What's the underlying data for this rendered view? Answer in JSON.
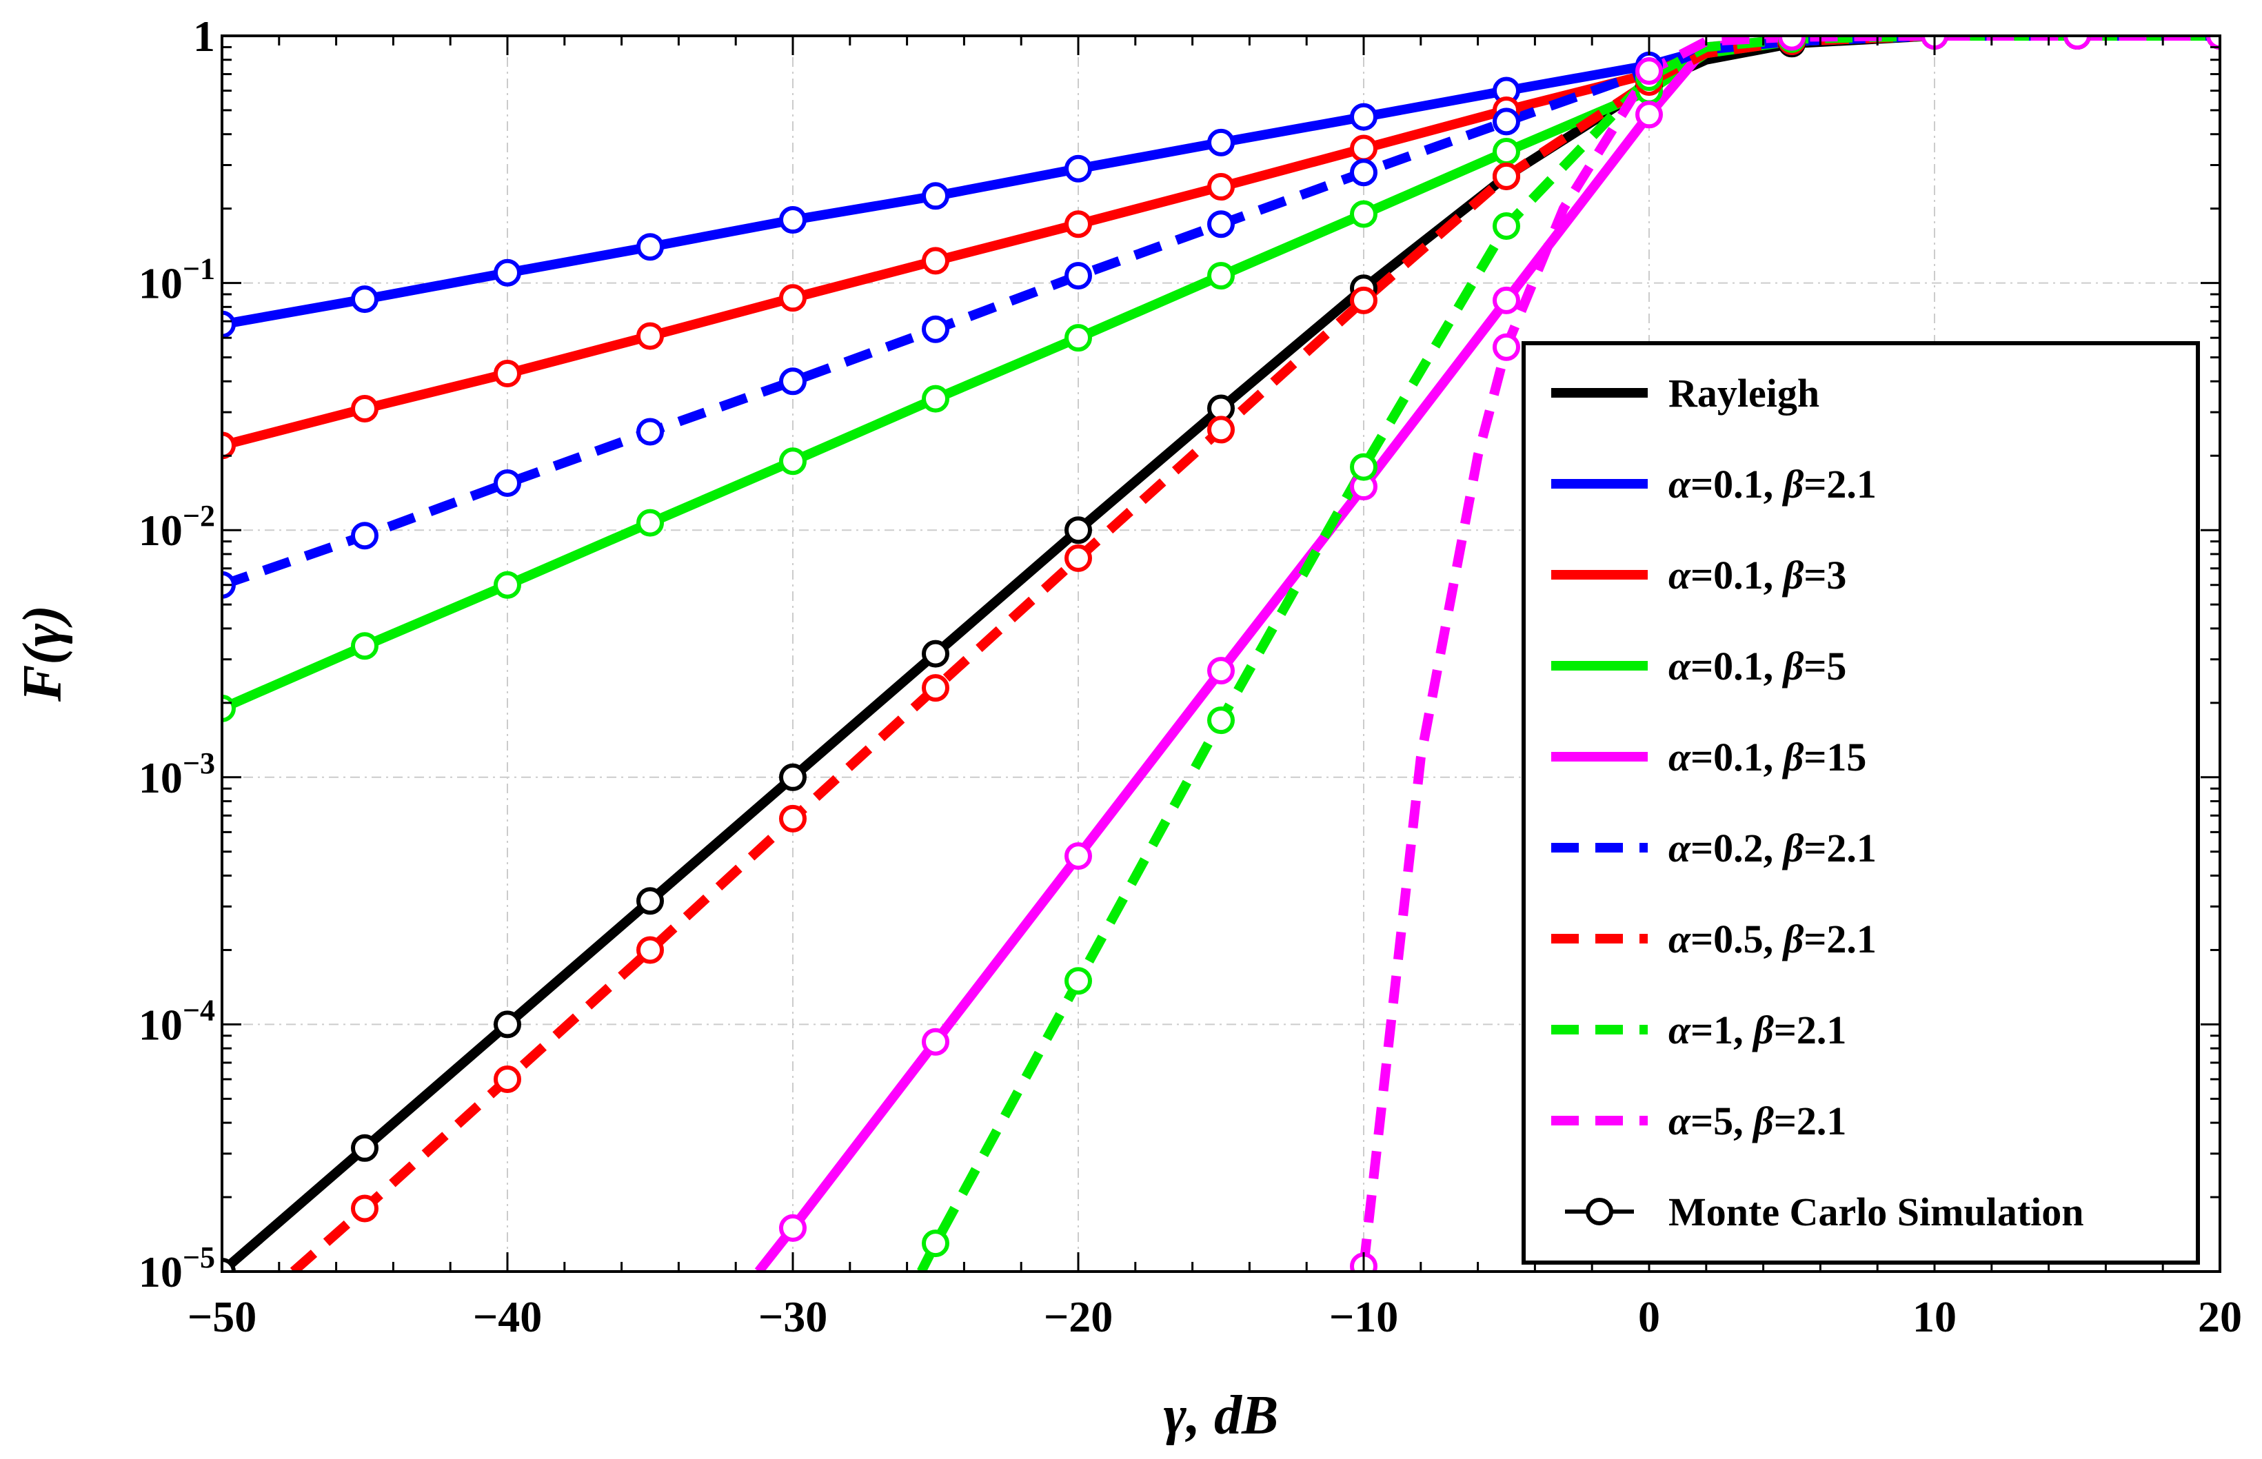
{
  "chart_data": {
    "type": "line",
    "title": "",
    "xlabel": "γ, dB",
    "ylabel": "F(γ)",
    "xlim": [
      -50,
      20
    ],
    "ylim_log10": [
      -5,
      0
    ],
    "y_scale": "log",
    "grid": true,
    "x_ticks": [
      {
        "value": -50,
        "label": "−50"
      },
      {
        "value": -40,
        "label": "−40"
      },
      {
        "value": -30,
        "label": "−30"
      },
      {
        "value": -20,
        "label": "−20"
      },
      {
        "value": -10,
        "label": "−10"
      },
      {
        "value": 0,
        "label": "0"
      },
      {
        "value": 10,
        "label": "10"
      },
      {
        "value": 20,
        "label": "20"
      }
    ],
    "y_ticks": [
      {
        "exp": 0,
        "base": "1",
        "sup": ""
      },
      {
        "exp": -1,
        "base": "10",
        "sup": "−1"
      },
      {
        "exp": -2,
        "base": "10",
        "sup": "−2"
      },
      {
        "exp": -3,
        "base": "10",
        "sup": "−3"
      },
      {
        "exp": -4,
        "base": "10",
        "sup": "−4"
      },
      {
        "exp": -5,
        "base": "10",
        "sup": "−5"
      }
    ],
    "legend_position": "right",
    "marker_legend_label": "Monte Carlo Simulation",
    "series": [
      {
        "id": "rayleigh",
        "name": "Rayleigh",
        "color": "#000000",
        "dashed": false,
        "x": [
          -50,
          -45,
          -40,
          -35,
          -30,
          -25,
          -20,
          -15,
          -10,
          -5,
          0,
          2,
          5,
          10,
          15,
          20
        ],
        "y": [
          1e-05,
          3.16e-05,
          0.0001,
          0.000316,
          0.001,
          0.00316,
          0.01,
          0.0311,
          0.0952,
          0.27,
          0.63,
          0.8,
          0.93,
          1,
          1,
          1
        ],
        "markers_x": [
          -50,
          -45,
          -40,
          -35,
          -30,
          -25,
          -20,
          -15,
          -10,
          -5,
          0,
          5,
          10,
          15,
          20
        ]
      },
      {
        "id": "a01b21",
        "name": "α=0.1, β=2.1",
        "greek_a": "α",
        "val_a": "=0.1, ",
        "greek_b": "β",
        "val_b": "=2.1",
        "color": "#0000ff",
        "dashed": false,
        "x": [
          -50,
          -45,
          -40,
          -35,
          -30,
          -25,
          -20,
          -15,
          -10,
          -5,
          0,
          2,
          5,
          10,
          15,
          20
        ],
        "y": [
          0.068,
          0.086,
          0.11,
          0.14,
          0.18,
          0.225,
          0.29,
          0.37,
          0.47,
          0.6,
          0.76,
          0.88,
          0.95,
          1,
          1,
          1
        ],
        "markers_x": [
          -50,
          -45,
          -40,
          -35,
          -30,
          -25,
          -20,
          -15,
          -10,
          -5,
          0,
          5,
          10,
          15,
          20
        ]
      },
      {
        "id": "a01b3",
        "name": "α=0.1, β=3",
        "greek_a": "α",
        "val_a": "=0.1, ",
        "greek_b": "β",
        "val_b": "=3",
        "color": "#ff0000",
        "dashed": false,
        "x": [
          -50,
          -45,
          -40,
          -35,
          -30,
          -25,
          -20,
          -15,
          -10,
          -5,
          0,
          2,
          5,
          10,
          15,
          20
        ],
        "y": [
          0.022,
          0.031,
          0.043,
          0.061,
          0.087,
          0.123,
          0.173,
          0.245,
          0.35,
          0.5,
          0.7,
          0.87,
          0.95,
          1,
          1,
          1
        ],
        "markers_x": [
          -50,
          -45,
          -40,
          -35,
          -30,
          -25,
          -20,
          -15,
          -10,
          -5,
          0,
          5,
          10,
          15,
          20
        ]
      },
      {
        "id": "a01b5",
        "name": "α=0.1, β=5",
        "greek_a": "α",
        "val_a": "=0.1, ",
        "greek_b": "β",
        "val_b": "=5",
        "color": "#00ee00",
        "dashed": false,
        "x": [
          -50,
          -45,
          -40,
          -35,
          -30,
          -25,
          -20,
          -15,
          -10,
          -5,
          0,
          2,
          5,
          10,
          15,
          20
        ],
        "y": [
          0.0019,
          0.0034,
          0.006,
          0.0107,
          0.019,
          0.034,
          0.06,
          0.107,
          0.19,
          0.34,
          0.6,
          0.85,
          0.95,
          1,
          1,
          1
        ],
        "markers_x": [
          -50,
          -45,
          -40,
          -35,
          -30,
          -25,
          -20,
          -15,
          -10,
          -5,
          0,
          5,
          10,
          15,
          20
        ]
      },
      {
        "id": "a01b15",
        "name": "α=0.1, β=15",
        "greek_a": "α",
        "val_a": "=0.1, ",
        "greek_b": "β",
        "val_b": "=15",
        "color": "#ff00ff",
        "dashed": false,
        "x": [
          -31.2,
          -30,
          -25,
          -20,
          -15,
          -10,
          -5,
          0,
          2,
          5,
          10,
          15,
          20
        ],
        "y": [
          1e-05,
          1.5e-05,
          8.5e-05,
          0.00048,
          0.0027,
          0.015,
          0.085,
          0.48,
          0.9,
          0.97,
          1,
          1,
          1
        ],
        "markers_x": [
          -30,
          -25,
          -20,
          -15,
          -10,
          -5,
          0,
          5,
          10,
          15,
          20
        ]
      },
      {
        "id": "a02b21",
        "name": "α=0.2, β=2.1",
        "greek_a": "α",
        "val_a": "=0.2, ",
        "greek_b": "β",
        "val_b": "=2.1",
        "color": "#0000ff",
        "dashed": true,
        "x": [
          -50,
          -45,
          -40,
          -35,
          -30,
          -25,
          -20,
          -15,
          -10,
          -5,
          0,
          2,
          5,
          10,
          15,
          20
        ],
        "y": [
          0.006,
          0.0095,
          0.0155,
          0.025,
          0.04,
          0.065,
          0.107,
          0.173,
          0.28,
          0.45,
          0.72,
          0.88,
          0.95,
          1,
          1,
          1
        ],
        "markers_x": [
          -50,
          -45,
          -40,
          -35,
          -30,
          -25,
          -20,
          -15,
          -10,
          -5,
          0,
          5,
          10,
          15,
          20
        ]
      },
      {
        "id": "a05b21",
        "name": "α=0.5, β=2.1",
        "greek_a": "α",
        "val_a": "=0.5, ",
        "greek_b": "β",
        "val_b": "=2.1",
        "color": "#ff0000",
        "dashed": true,
        "x": [
          -47.5,
          -45,
          -40,
          -35,
          -30,
          -25,
          -20,
          -15,
          -10,
          -5,
          0,
          2,
          5,
          10,
          15,
          20
        ],
        "y": [
          1e-05,
          1.8e-05,
          6e-05,
          0.0002,
          0.00068,
          0.0023,
          0.0077,
          0.0255,
          0.085,
          0.27,
          0.65,
          0.85,
          0.95,
          1,
          1,
          1
        ],
        "markers_x": [
          -45,
          -40,
          -35,
          -30,
          -25,
          -20,
          -15,
          -10,
          -5,
          0,
          5,
          10,
          15,
          20
        ]
      },
      {
        "id": "a1b21",
        "name": "α=1, β=2.1",
        "greek_a": "α",
        "val_a": "=1, ",
        "greek_b": "β",
        "val_b": "=2.1",
        "color": "#00ee00",
        "dashed": true,
        "x": [
          -25.5,
          -25,
          -20,
          -15,
          -10,
          -5,
          0,
          2,
          5,
          10,
          15,
          20
        ],
        "y": [
          1e-05,
          1.3e-05,
          0.00015,
          0.0017,
          0.018,
          0.17,
          0.68,
          0.9,
          0.97,
          1,
          1,
          1
        ],
        "markers_x": [
          -25,
          -20,
          -15,
          -10,
          -5,
          0,
          5,
          10,
          15,
          20
        ]
      },
      {
        "id": "a5b21",
        "name": "α=5, β=2.1",
        "greek_a": "α",
        "val_a": "=5, ",
        "greek_b": "β",
        "val_b": "=2.1",
        "color": "#ff00ff",
        "dashed": true,
        "x": [
          -10,
          -8,
          -6,
          -5,
          -3,
          0,
          2,
          5,
          10,
          15,
          20
        ],
        "y": [
          1.05e-05,
          0.0012,
          0.02,
          0.055,
          0.2,
          0.72,
          0.95,
          0.99,
          1,
          1,
          1
        ],
        "markers_x": [
          -10,
          -5,
          0,
          5,
          10,
          15,
          20
        ]
      }
    ]
  }
}
